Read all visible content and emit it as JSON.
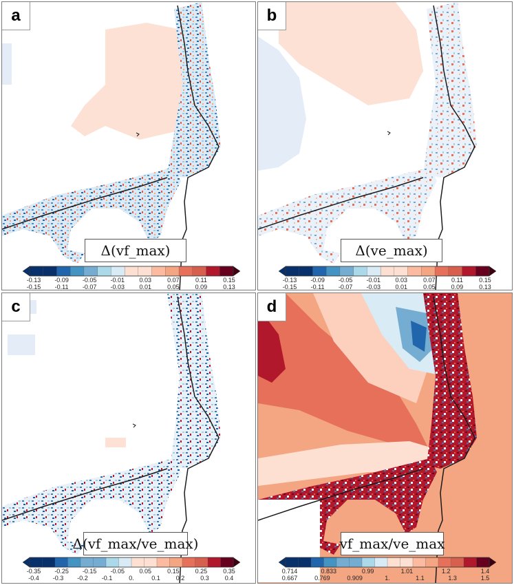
{
  "colors": {
    "blue": [
      "#08306b",
      "#2166ac",
      "#4393c3",
      "#74add1",
      "#abd9e9",
      "#d9ecf6"
    ],
    "red": [
      "#fde0d2",
      "#fcbba1",
      "#f4a582",
      "#e7705a",
      "#d6604d",
      "#b2182b",
      "#67001f"
    ],
    "coast": "#1a1a1a"
  },
  "chart_data": [
    {
      "type": "heatmap",
      "panel_label": "a",
      "variable_label": "Δ(vf_max)",
      "colorbar": {
        "upper_ticks": [
          "-0.13",
          "-0.09",
          "-0.05",
          "-0.01",
          "0.03",
          "0.07",
          "0.11",
          "0.15"
        ],
        "lower_ticks": [
          "-0.15",
          "-0.11",
          "-0.07",
          "-0.03",
          "0.01",
          "0.05",
          "0.09",
          "0.13"
        ],
        "range": [
          -0.15,
          0.15
        ],
        "bins": 15
      }
    },
    {
      "type": "heatmap",
      "panel_label": "b",
      "variable_label": "Δ(ve_max)",
      "colorbar": {
        "upper_ticks": [
          "-0.13",
          "-0.09",
          "-0.05",
          "-0.01",
          "0.03",
          "0.07",
          "0.11",
          "0.15"
        ],
        "lower_ticks": [
          "-0.15",
          "-0.11",
          "-0.07",
          "-0.03",
          "0.01",
          "0.05",
          "0.09",
          "0.13"
        ],
        "range": [
          -0.15,
          0.15
        ],
        "bins": 15
      }
    },
    {
      "type": "heatmap",
      "panel_label": "c",
      "variable_label": "Δ(vf_max/ve_max)",
      "colorbar": {
        "upper_ticks": [
          "-0.35",
          "-0.25",
          "-0.15",
          "-0.05",
          "0.05",
          "0.15",
          "0.25",
          "0.35"
        ],
        "lower_ticks": [
          "-0.4",
          "-0.3",
          "-0.2",
          "-0.1",
          "0.",
          "0.1",
          "0.2",
          "0.3",
          "0.4"
        ],
        "range": [
          -0.4,
          0.4
        ],
        "bins": 16
      }
    },
    {
      "type": "heatmap",
      "panel_label": "d",
      "variable_label": "vf_max/ve_max",
      "colorbar": {
        "upper_ticks": [
          "0.714",
          "0.833",
          "0.99",
          "1.01",
          "1.2",
          "1.4"
        ],
        "lower_ticks": [
          "0.667",
          "0.769",
          "0.909",
          "1.",
          "1.1",
          "1.3",
          "1.5"
        ],
        "range": [
          0.667,
          1.5
        ],
        "bins": 16
      }
    }
  ]
}
